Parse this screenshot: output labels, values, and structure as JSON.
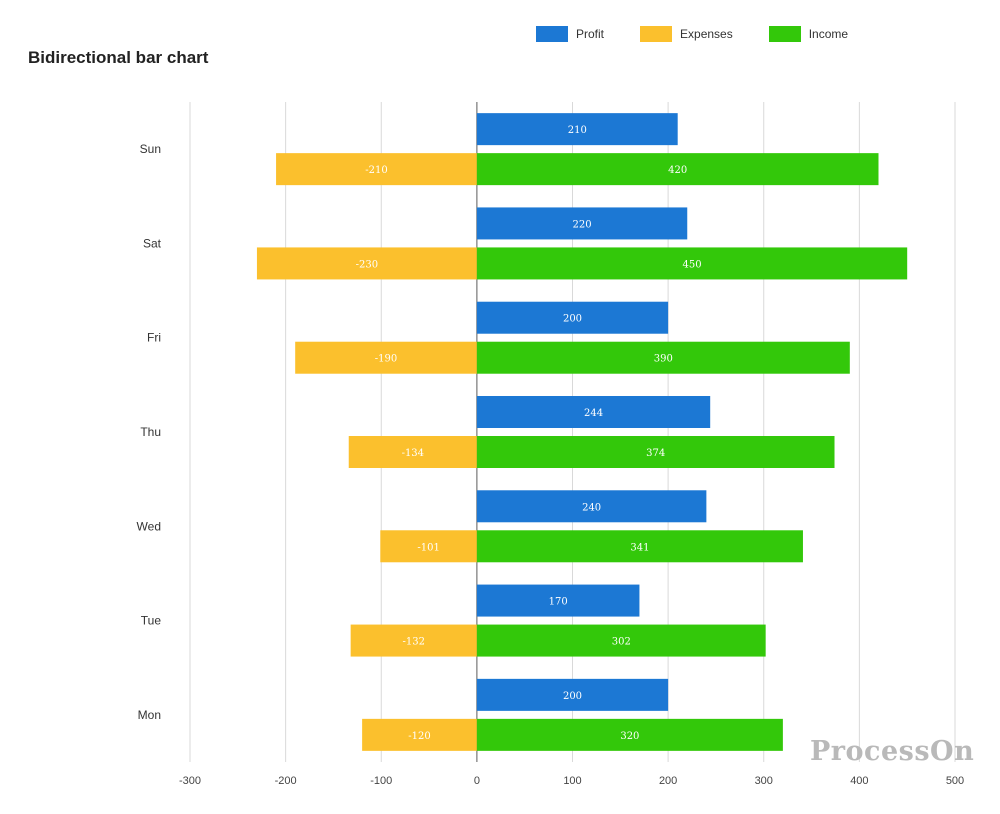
{
  "chart_data": {
    "type": "bar",
    "orientation": "horizontal",
    "title": "Bidirectional bar chart",
    "categories": [
      "Mon",
      "Tue",
      "Wed",
      "Thu",
      "Fri",
      "Sat",
      "Sun"
    ],
    "series": [
      {
        "name": "Profit",
        "color": "#1c78d4",
        "values": [
          200,
          170,
          240,
          244,
          200,
          220,
          210
        ]
      },
      {
        "name": "Expenses",
        "color": "#fbc02d",
        "values": [
          -120,
          -132,
          -101,
          -134,
          -190,
          -230,
          -210
        ]
      },
      {
        "name": "Income",
        "color": "#33c80a",
        "values": [
          320,
          302,
          341,
          374,
          390,
          450,
          420
        ]
      }
    ],
    "xlim": [
      -300,
      500
    ],
    "xticks": [
      "-300",
      "-200",
      "-100",
      "0",
      "100",
      "200",
      "300",
      "400",
      "500"
    ],
    "grid": true,
    "legend_position": "top-right"
  },
  "watermark": "ProcessOn"
}
